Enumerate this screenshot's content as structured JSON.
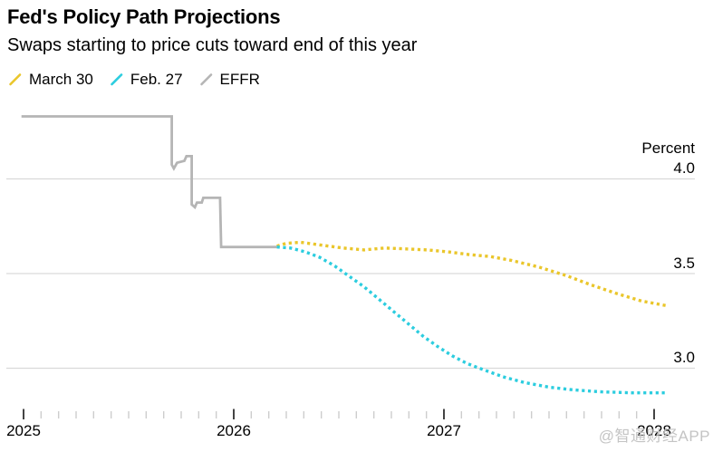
{
  "chart_data": {
    "type": "line",
    "title": "Fed's Policy Path Projections",
    "subtitle": "Swaps starting to price cuts toward end of this year",
    "ylabel": "Percent",
    "grid": "horizontal",
    "legend_position": "top-left",
    "x_range": [
      2025.0,
      2028.06
    ],
    "ylim": [
      2.75,
      4.45
    ],
    "y_ticks": [
      {
        "value": 4.0,
        "label": "4.0"
      },
      {
        "value": 3.5,
        "label": "3.5"
      },
      {
        "value": 3.0,
        "label": "3.0"
      }
    ],
    "x_ticks_major": [
      {
        "value": 2025,
        "label": "2025"
      },
      {
        "value": 2026,
        "label": "2026"
      },
      {
        "value": 2027,
        "label": "2027"
      },
      {
        "value": 2028,
        "label": "2028"
      }
    ],
    "x_minor_tick_interval_years": 0.08333,
    "series": [
      {
        "name": "March 30",
        "color": "#EAC62B",
        "style": "dotted",
        "points": [
          [
            2026.205,
            3.645
          ],
          [
            2026.25,
            3.66
          ],
          [
            2026.32,
            3.665
          ],
          [
            2026.42,
            3.65
          ],
          [
            2026.52,
            3.635
          ],
          [
            2026.62,
            3.625
          ],
          [
            2026.72,
            3.635
          ],
          [
            2026.82,
            3.63
          ],
          [
            2026.92,
            3.625
          ],
          [
            2027.02,
            3.615
          ],
          [
            2027.12,
            3.6
          ],
          [
            2027.22,
            3.59
          ],
          [
            2027.32,
            3.57
          ],
          [
            2027.45,
            3.535
          ],
          [
            2027.58,
            3.49
          ],
          [
            2027.7,
            3.44
          ],
          [
            2027.82,
            3.395
          ],
          [
            2027.94,
            3.355
          ],
          [
            2028.06,
            3.33
          ]
        ]
      },
      {
        "name": "Feb. 27",
        "color": "#2CCDDF",
        "style": "dotted",
        "points": [
          [
            2026.205,
            3.64
          ],
          [
            2026.27,
            3.635
          ],
          [
            2026.34,
            3.615
          ],
          [
            2026.41,
            3.585
          ],
          [
            2026.48,
            3.54
          ],
          [
            2026.55,
            3.485
          ],
          [
            2026.62,
            3.43
          ],
          [
            2026.69,
            3.365
          ],
          [
            2026.76,
            3.3
          ],
          [
            2026.83,
            3.235
          ],
          [
            2026.9,
            3.17
          ],
          [
            2026.97,
            3.115
          ],
          [
            2027.04,
            3.065
          ],
          [
            2027.11,
            3.025
          ],
          [
            2027.18,
            2.995
          ],
          [
            2027.28,
            2.955
          ],
          [
            2027.38,
            2.925
          ],
          [
            2027.5,
            2.9
          ],
          [
            2027.62,
            2.885
          ],
          [
            2027.75,
            2.875
          ],
          [
            2027.9,
            2.87
          ],
          [
            2028.06,
            2.87
          ]
        ]
      },
      {
        "name": "EFFR",
        "color": "#B5B5B5",
        "style": "solid",
        "points": [
          [
            2024.99,
            4.33
          ],
          [
            2025.705,
            4.33
          ],
          [
            2025.705,
            4.075
          ],
          [
            2025.715,
            4.055
          ],
          [
            2025.73,
            4.085
          ],
          [
            2025.765,
            4.095
          ],
          [
            2025.775,
            4.12
          ],
          [
            2025.8,
            4.12
          ],
          [
            2025.8,
            3.865
          ],
          [
            2025.815,
            3.85
          ],
          [
            2025.825,
            3.875
          ],
          [
            2025.848,
            3.875
          ],
          [
            2025.855,
            3.9
          ],
          [
            2025.935,
            3.9
          ],
          [
            2025.94,
            3.64
          ],
          [
            2026.205,
            3.64
          ]
        ]
      }
    ],
    "colors": {
      "gridline": "#D9D9D9",
      "major_tick": "#2F2F2F",
      "minor_tick": "#CDCDCD"
    }
  },
  "legend": {
    "items": [
      {
        "label": "March 30",
        "color": "#EAC62B"
      },
      {
        "label": "Feb. 27",
        "color": "#2CCDDF"
      },
      {
        "label": "EFFR",
        "color": "#B5B5B5"
      }
    ]
  },
  "page": {
    "watermark": "@智通财经APP",
    "watermark_color": "#C4C4C4"
  }
}
